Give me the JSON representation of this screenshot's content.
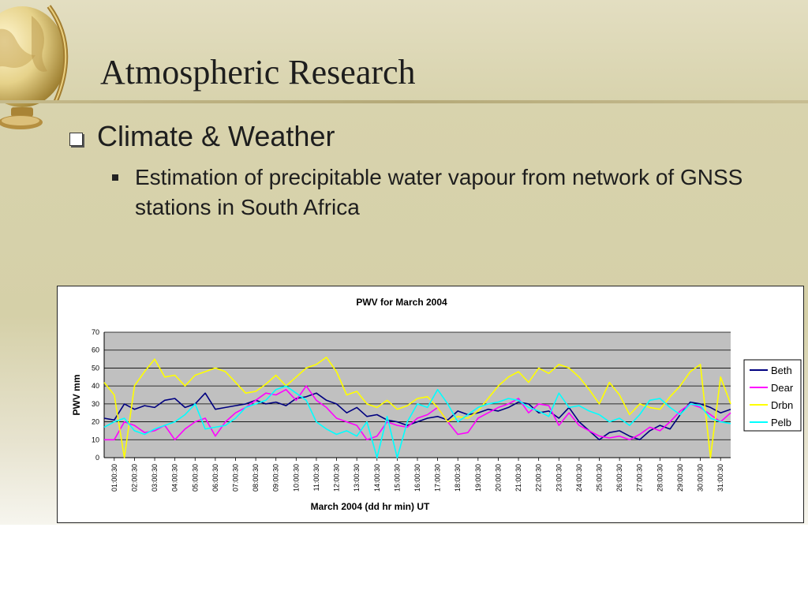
{
  "slide": {
    "title": "Atmospheric Research",
    "bullet1": "Climate & Weather",
    "bullet2": "Estimation of precipitable water vapour from network of GNSS stations in South Africa"
  },
  "colors": {
    "plot_background": "#c0c0c0",
    "Beth": "#000080",
    "Dear": "#ff00ff",
    "Drbn": "#ffff00",
    "Pelb": "#00ffff"
  },
  "chart_data": {
    "type": "line",
    "title": "PWV for March 2004",
    "xlabel": "March 2004 (dd hr min) UT",
    "ylabel": "PWV mm",
    "ylim": [
      0,
      70
    ],
    "yticks": [
      0,
      10,
      20,
      30,
      40,
      50,
      60,
      70
    ],
    "grid": true,
    "legend": "right",
    "xlim": [
      0.5,
      31.5
    ],
    "categories": [
      "01:00:30",
      "02:00:30",
      "03:00:30",
      "04:00:30",
      "05:00:30",
      "06:00:30",
      "07:00:30",
      "08:00:30",
      "09:00:30",
      "10:00:30",
      "11:00:30",
      "12:00:30",
      "13:00:30",
      "14:00:30",
      "15:00:30",
      "16:00:30",
      "17:00:30",
      "18:00:30",
      "19:00:30",
      "20:00:30",
      "21:00:30",
      "22:00:30",
      "23:00:30",
      "24:00:30",
      "25:00:30",
      "26:00:30",
      "27:00:30",
      "28:00:30",
      "29:00:30",
      "30:00:30",
      "31:00:30"
    ],
    "x": [
      0.5,
      1,
      1.5,
      2,
      2.5,
      3,
      3.5,
      4,
      4.5,
      5,
      5.5,
      6,
      6.5,
      7,
      7.5,
      8,
      8.5,
      9,
      9.5,
      10,
      10.5,
      11,
      11.5,
      12,
      12.5,
      13,
      13.5,
      14,
      14.5,
      15,
      15.5,
      16,
      16.5,
      17,
      17.5,
      18,
      18.5,
      19,
      19.5,
      20,
      20.5,
      21,
      21.5,
      22,
      22.5,
      23,
      23.5,
      24,
      24.5,
      25,
      25.5,
      26,
      26.5,
      27,
      27.5,
      28,
      28.5,
      29,
      29.5,
      30,
      30.5,
      31,
      31.5
    ],
    "series": [
      {
        "name": "Beth",
        "values": [
          22,
          21,
          30,
          27,
          29,
          28,
          32,
          33,
          28,
          30,
          36,
          27,
          28,
          29,
          30,
          32,
          30,
          31,
          29,
          33,
          34,
          36,
          32,
          30,
          25,
          28,
          23,
          24,
          21,
          20,
          18,
          20,
          22,
          23,
          21,
          26,
          24,
          25,
          27,
          26,
          28,
          31,
          30,
          25,
          26,
          22,
          28,
          20,
          15,
          10,
          14,
          15,
          12,
          10,
          15,
          18,
          16,
          24,
          31,
          30,
          28,
          25,
          27
        ]
      },
      {
        "name": "Dear",
        "values": [
          10,
          10,
          20,
          18,
          14,
          15,
          18,
          10,
          16,
          20,
          22,
          12,
          20,
          25,
          28,
          32,
          36,
          35,
          38,
          32,
          40,
          32,
          28,
          22,
          20,
          18,
          10,
          12,
          20,
          18,
          17,
          22,
          24,
          28,
          20,
          13,
          14,
          22,
          25,
          28,
          30,
          33,
          25,
          30,
          29,
          18,
          25,
          18,
          15,
          12,
          11,
          12,
          10,
          13,
          17,
          15,
          20,
          26,
          30,
          28,
          24,
          20,
          25
        ]
      },
      {
        "name": "Drbn",
        "values": [
          42,
          35,
          0,
          40,
          48,
          55,
          45,
          46,
          40,
          46,
          48,
          50,
          48,
          42,
          36,
          37,
          41,
          46,
          40,
          45,
          50,
          52,
          56,
          48,
          35,
          37,
          30,
          28,
          32,
          27,
          29,
          33,
          34,
          28,
          20,
          23,
          22,
          26,
          33,
          40,
          45,
          48,
          42,
          50,
          47,
          52,
          50,
          45,
          38,
          30,
          42,
          35,
          24,
          30,
          28,
          27,
          34,
          40,
          48,
          52,
          0,
          45,
          30
        ]
      },
      {
        "name": "Pelb",
        "values": [
          17,
          20,
          22,
          15,
          13,
          16,
          18,
          20,
          24,
          30,
          16,
          17,
          18,
          22,
          28,
          30,
          32,
          38,
          40,
          36,
          32,
          20,
          16,
          13,
          15,
          12,
          20,
          0,
          23,
          0,
          20,
          30,
          28,
          38,
          30,
          20,
          24,
          28,
          30,
          31,
          33,
          32,
          28,
          26,
          23,
          36,
          28,
          29,
          26,
          24,
          20,
          22,
          18,
          24,
          32,
          33,
          28,
          24,
          30,
          29,
          22,
          20,
          19
        ]
      }
    ]
  }
}
